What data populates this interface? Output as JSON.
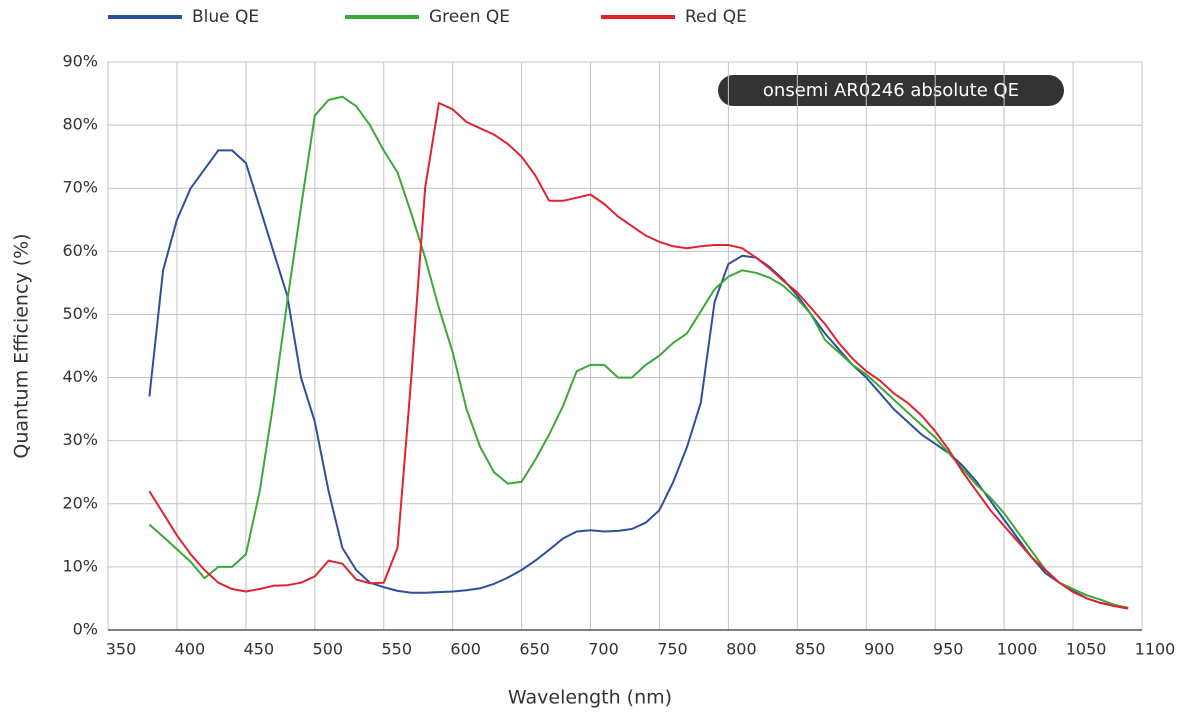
{
  "chart_data": {
    "type": "line",
    "y_label": "Quantum Efficiency (%)",
    "x_label": "Wavelength (nm)",
    "annotation": "onsemi AR0246 absolute QE",
    "x": [
      380,
      390,
      400,
      410,
      420,
      430,
      440,
      450,
      460,
      470,
      480,
      490,
      500,
      510,
      520,
      530,
      540,
      550,
      560,
      570,
      580,
      590,
      600,
      610,
      620,
      630,
      640,
      650,
      660,
      670,
      680,
      690,
      700,
      710,
      720,
      730,
      740,
      750,
      760,
      770,
      780,
      790,
      800,
      810,
      820,
      830,
      840,
      850,
      860,
      870,
      880,
      890,
      900,
      910,
      920,
      930,
      940,
      950,
      960,
      970,
      980,
      990,
      1000,
      1010,
      1020,
      1030,
      1040,
      1050,
      1060,
      1070,
      1080,
      1090
    ],
    "series": [
      {
        "name": "Blue QE",
        "color": "#2d4f9e",
        "values": [
          37,
          57,
          65,
          70,
          73,
          76,
          76,
          74,
          67,
          60,
          53,
          40,
          33,
          22,
          13,
          9.5,
          7.5,
          6.8,
          6.2,
          5.9,
          5.9,
          6.0,
          6.1,
          6.3,
          6.6,
          7.3,
          8.3,
          9.5,
          11,
          12.7,
          14.5,
          15.6,
          15.8,
          15.6,
          15.7,
          16,
          17,
          19,
          23.5,
          29,
          36,
          52,
          58,
          59.3,
          59,
          57.5,
          55.5,
          53,
          50,
          47,
          44.5,
          42,
          40,
          37.5,
          35,
          33,
          31,
          29.5,
          28,
          26,
          23.5,
          20.5,
          17.5,
          14.5,
          11.5,
          9,
          7.5,
          6.2,
          5,
          4.3,
          3.8,
          3.4
        ]
      },
      {
        "name": "Green QE",
        "color": "#3aa935",
        "values": [
          16.7,
          14.8,
          12.8,
          10.8,
          8.2,
          10,
          10,
          12,
          22,
          36,
          52,
          67,
          81.5,
          84,
          84.5,
          83,
          80,
          76,
          72.5,
          66,
          59,
          51,
          44,
          35,
          29,
          25,
          23.2,
          23.5,
          27,
          31,
          35.5,
          41,
          42,
          42,
          40,
          40,
          42,
          43.5,
          45.5,
          47,
          50.5,
          54,
          56,
          57,
          56.6,
          55.8,
          54.5,
          52.5,
          50,
          46,
          44,
          42,
          40.5,
          38.5,
          36.5,
          34.5,
          32.5,
          30.5,
          28,
          25.5,
          23,
          21,
          18.5,
          15.5,
          12.5,
          9.5,
          7.5,
          6.5,
          5.5,
          4.8,
          4,
          3.5
        ]
      },
      {
        "name": "Red QE",
        "color": "#e0232e",
        "values": [
          22,
          18.5,
          15,
          12,
          9.5,
          7.5,
          6.5,
          6.1,
          6.5,
          7,
          7.1,
          7.5,
          8.5,
          11,
          10.5,
          8,
          7.4,
          7.5,
          13,
          40,
          70,
          83.5,
          82.5,
          80.5,
          79.5,
          78.5,
          77,
          75,
          72,
          68,
          68,
          68.5,
          69,
          67.5,
          65.5,
          64,
          62.5,
          61.5,
          60.8,
          60.5,
          60.8,
          61,
          61,
          60.5,
          59,
          57.3,
          55.3,
          53.5,
          51,
          48.5,
          45.5,
          43,
          41,
          39.5,
          37.5,
          36,
          34,
          31.5,
          28.5,
          25,
          22,
          19,
          16.5,
          14,
          11.5,
          9.5,
          7.5,
          6,
          5,
          4.3,
          3.8,
          3.4
        ]
      }
    ],
    "xlim": [
      350,
      1100
    ],
    "xticks": [
      350,
      400,
      450,
      500,
      550,
      600,
      650,
      700,
      750,
      800,
      850,
      900,
      950,
      1000,
      1050,
      1100
    ],
    "ylim": [
      0,
      90
    ],
    "yticks": [
      {
        "value": 0,
        "label": "0%"
      },
      {
        "value": 10,
        "label": "10%"
      },
      {
        "value": 20,
        "label": "20%"
      },
      {
        "value": 30,
        "label": "30%"
      },
      {
        "value": 40,
        "label": "40%"
      },
      {
        "value": 50,
        "label": "50%"
      },
      {
        "value": 60,
        "label": "60%"
      },
      {
        "value": 70,
        "label": "70%"
      },
      {
        "value": 80,
        "label": "80%"
      },
      {
        "value": 90,
        "label": "90%"
      }
    ],
    "grid": true
  }
}
